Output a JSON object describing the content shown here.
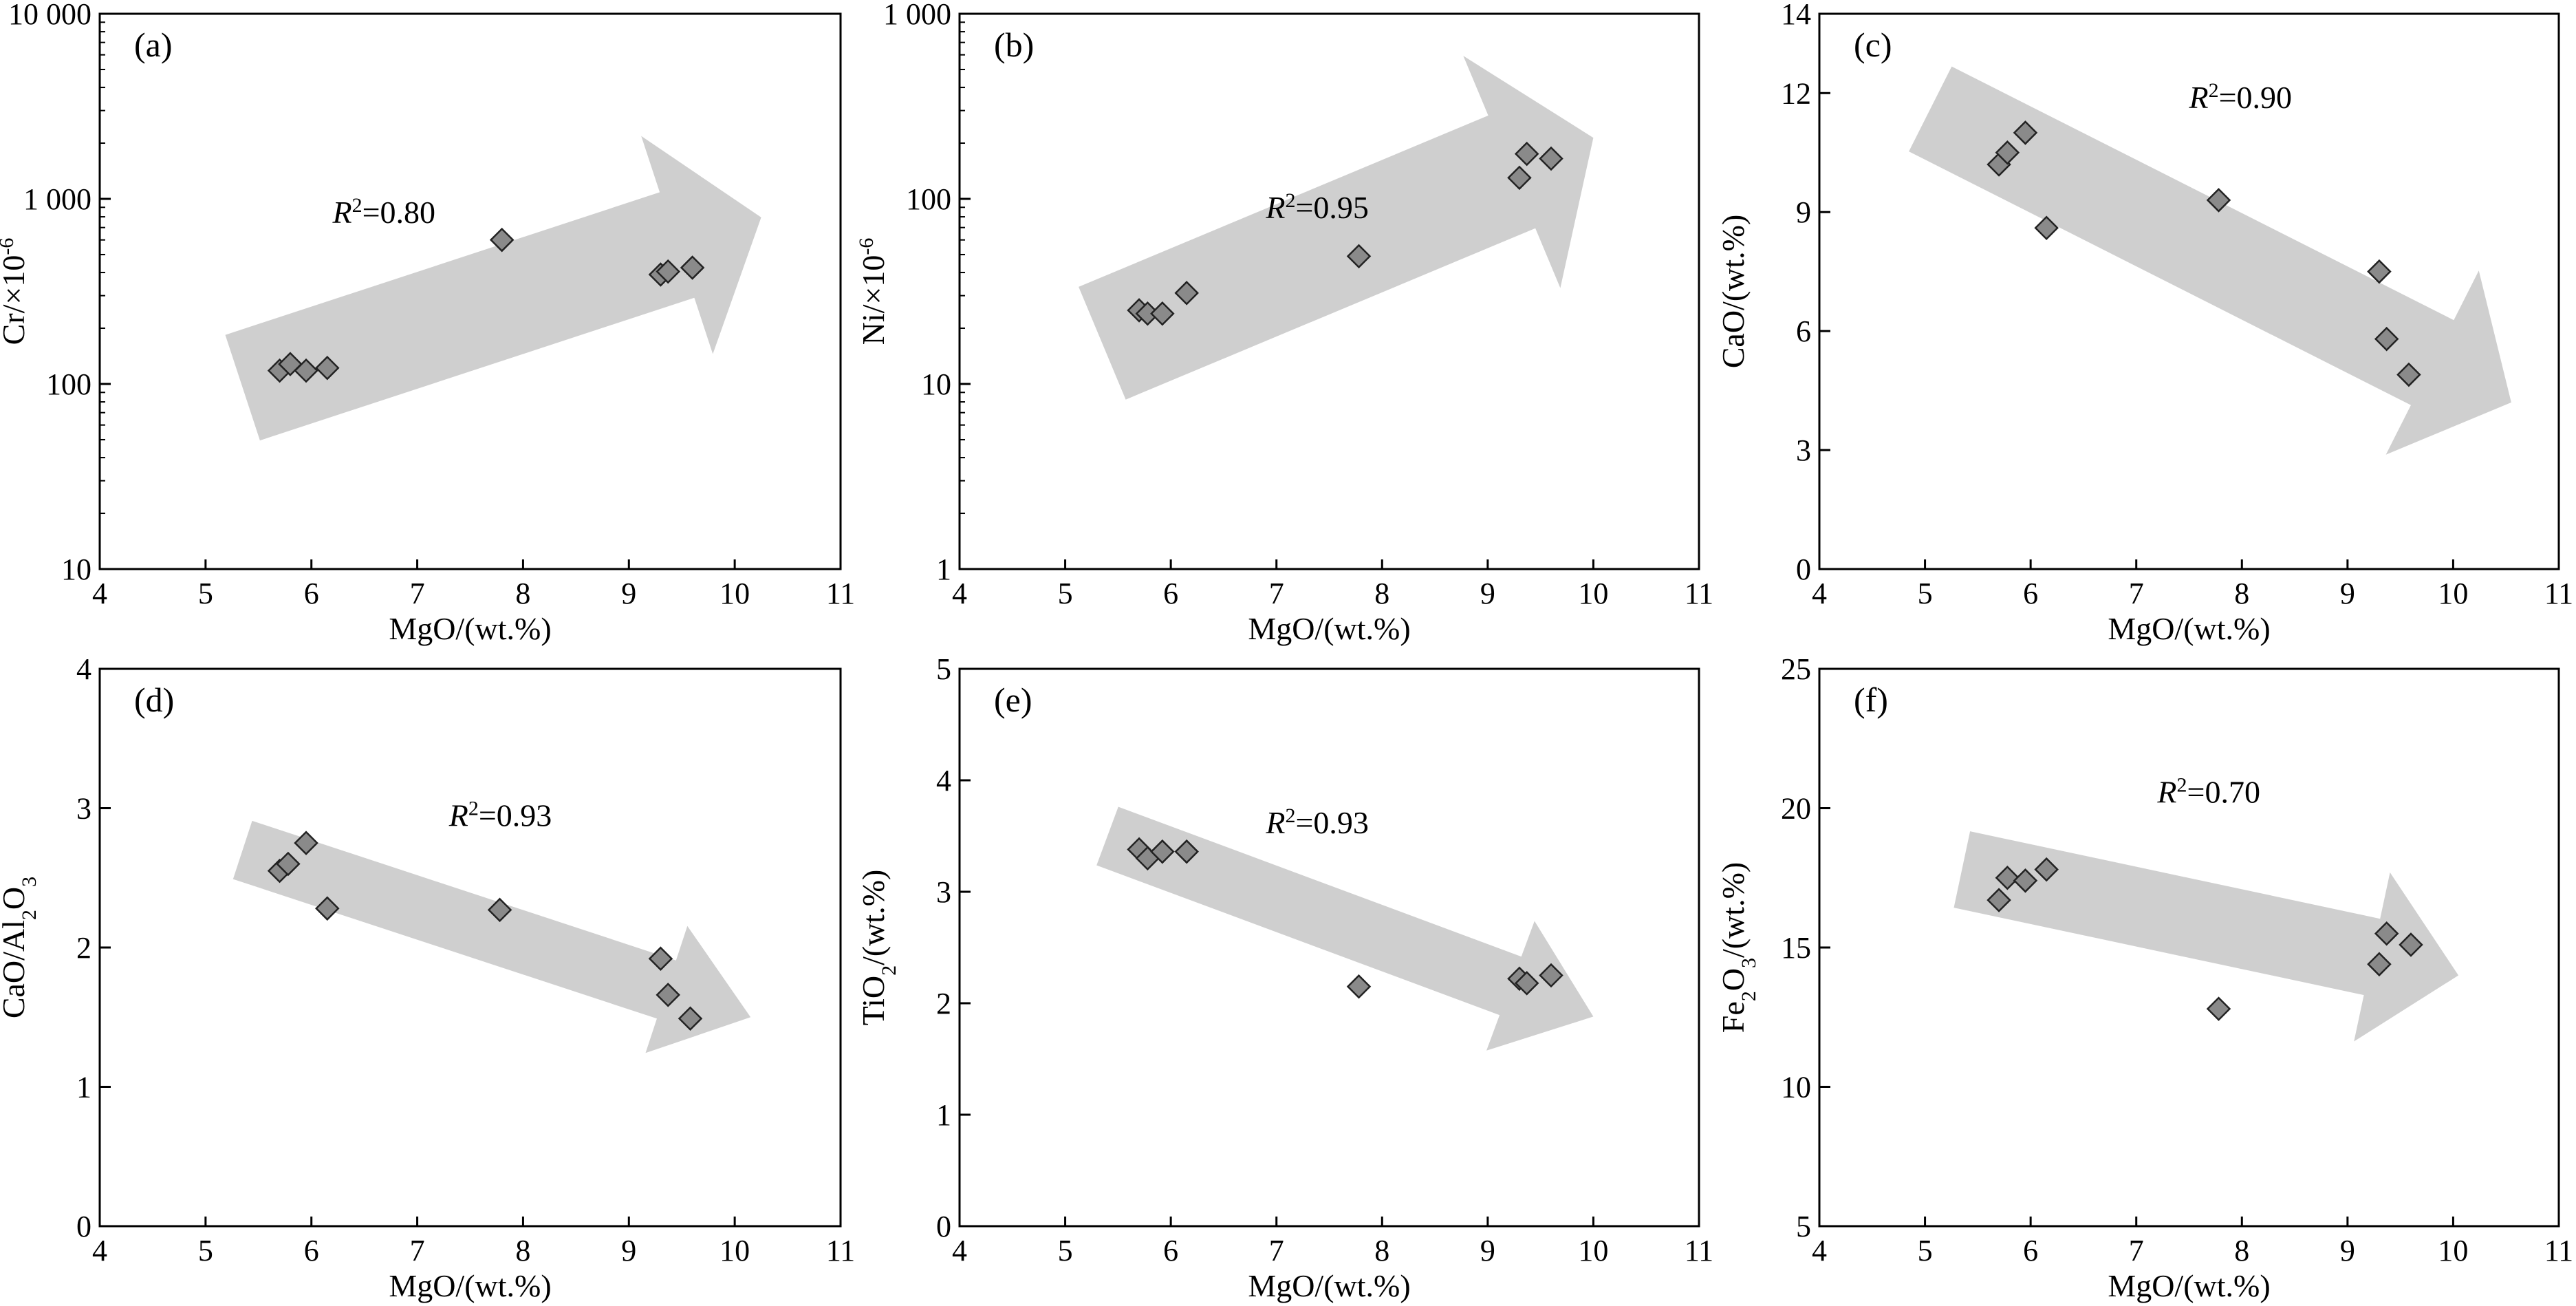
{
  "chart_data": [
    {
      "type": "scatter",
      "panel_label": "(a)",
      "scale": "log",
      "xlabel": "MgO/(wt.%)",
      "ylabel_main": "Cr/×10",
      "ylabel_sup": "-6",
      "xlim": [
        4,
        11
      ],
      "ylim": [
        10,
        10000
      ],
      "x_ticks": [
        4,
        5,
        6,
        7,
        8,
        9,
        10,
        11
      ],
      "x_tick_labels": [
        "4",
        "5",
        "6",
        "7",
        "8",
        "9",
        "10",
        "11"
      ],
      "y_ticks": [
        10,
        100,
        1000,
        10000
      ],
      "y_tick_labels": [
        "10",
        "100",
        "1 000",
        "10 000"
      ],
      "r2_prefix": "R",
      "r2_value": "=0.80",
      "trend": "increasing",
      "points": [
        [
          5.7,
          118
        ],
        [
          5.8,
          128
        ],
        [
          5.95,
          118
        ],
        [
          6.15,
          122
        ],
        [
          7.8,
          600
        ],
        [
          9.3,
          390
        ],
        [
          9.37,
          405
        ],
        [
          9.6,
          425
        ]
      ]
    },
    {
      "type": "scatter",
      "panel_label": "(b)",
      "scale": "log",
      "xlabel": "MgO/(wt.%)",
      "ylabel_main": "Ni/×10",
      "ylabel_sup": "-6",
      "xlim": [
        4,
        11
      ],
      "ylim": [
        1,
        1000
      ],
      "x_ticks": [
        4,
        5,
        6,
        7,
        8,
        9,
        10,
        11
      ],
      "x_tick_labels": [
        "4",
        "5",
        "6",
        "7",
        "8",
        "9",
        "10",
        "11"
      ],
      "y_ticks": [
        1,
        10,
        100,
        1000
      ],
      "y_tick_labels": [
        "1",
        "10",
        "100",
        "1 000"
      ],
      "r2_prefix": "R",
      "r2_value": "=0.95",
      "trend": "increasing",
      "points": [
        [
          5.7,
          25
        ],
        [
          5.78,
          24
        ],
        [
          5.92,
          24
        ],
        [
          6.15,
          31
        ],
        [
          7.78,
          49
        ],
        [
          9.3,
          130
        ],
        [
          9.37,
          175
        ],
        [
          9.6,
          165
        ]
      ]
    },
    {
      "type": "scatter",
      "panel_label": "(c)",
      "scale": "linear",
      "xlabel": "MgO/(wt.%)",
      "ylabel_main": "CaO/(wt.%)",
      "xlim": [
        4,
        11
      ],
      "ylim": [
        0,
        14
      ],
      "x_ticks": [
        4,
        5,
        6,
        7,
        8,
        9,
        10,
        11
      ],
      "x_tick_labels": [
        "4",
        "5",
        "6",
        "7",
        "8",
        "9",
        "10",
        "11"
      ],
      "y_ticks": [
        0,
        3,
        6,
        9,
        12,
        14
      ],
      "y_tick_labels": [
        "0",
        "3",
        "6",
        "9",
        "12",
        "14"
      ],
      "r2_prefix": "R",
      "r2_value": "=0.90",
      "trend": "decreasing",
      "points": [
        [
          5.7,
          10.2
        ],
        [
          5.78,
          10.5
        ],
        [
          5.95,
          11.0
        ],
        [
          6.15,
          8.6
        ],
        [
          7.78,
          9.3
        ],
        [
          9.3,
          7.5
        ],
        [
          9.37,
          5.8
        ],
        [
          9.58,
          4.9
        ]
      ]
    },
    {
      "type": "scatter",
      "panel_label": "(d)",
      "scale": "linear",
      "xlabel": "MgO/(wt.%)",
      "ylabel_main": "CaO/Al",
      "ylabel_sub": "2",
      "ylabel_tail": "O",
      "ylabel_sub2": "3",
      "xlim": [
        4,
        11
      ],
      "ylim": [
        0,
        4
      ],
      "x_ticks": [
        4,
        5,
        6,
        7,
        8,
        9,
        10,
        11
      ],
      "x_tick_labels": [
        "4",
        "5",
        "6",
        "7",
        "8",
        "9",
        "10",
        "11"
      ],
      "y_ticks": [
        0,
        1,
        2,
        3,
        4
      ],
      "y_tick_labels": [
        "0",
        "1",
        "2",
        "3",
        "4"
      ],
      "r2_prefix": "R",
      "r2_value": "=0.93",
      "trend": "decreasing",
      "points": [
        [
          5.7,
          2.55
        ],
        [
          5.78,
          2.6
        ],
        [
          5.95,
          2.75
        ],
        [
          6.15,
          2.28
        ],
        [
          7.78,
          2.27
        ],
        [
          9.3,
          1.92
        ],
        [
          9.37,
          1.66
        ],
        [
          9.58,
          1.49
        ]
      ]
    },
    {
      "type": "scatter",
      "panel_label": "(e)",
      "scale": "linear",
      "xlabel": "MgO/(wt.%)",
      "ylabel_main": "TiO",
      "ylabel_sub": "2",
      "ylabel_tail": "/(wt.%)",
      "xlim": [
        4,
        11
      ],
      "ylim": [
        0,
        5
      ],
      "x_ticks": [
        4,
        5,
        6,
        7,
        8,
        9,
        10,
        11
      ],
      "x_tick_labels": [
        "4",
        "5",
        "6",
        "7",
        "8",
        "9",
        "10",
        "11"
      ],
      "y_ticks": [
        0,
        1,
        2,
        3,
        4,
        5
      ],
      "y_tick_labels": [
        "0",
        "1",
        "2",
        "3",
        "4",
        "5"
      ],
      "r2_prefix": "R",
      "r2_value": "=0.93",
      "trend": "decreasing",
      "points": [
        [
          5.7,
          3.38
        ],
        [
          5.78,
          3.3
        ],
        [
          5.92,
          3.36
        ],
        [
          6.15,
          3.36
        ],
        [
          7.78,
          2.15
        ],
        [
          9.3,
          2.22
        ],
        [
          9.37,
          2.18
        ],
        [
          9.6,
          2.25
        ]
      ]
    },
    {
      "type": "scatter",
      "panel_label": "(f)",
      "scale": "linear",
      "xlabel": "MgO/(wt.%)",
      "ylabel_main": "Fe",
      "ylabel_sub": "2",
      "ylabel_tail": "O",
      "ylabel_sub2": "3",
      "ylabel_tail2": "/(wt.%)",
      "xlim": [
        4,
        11
      ],
      "ylim": [
        5,
        25
      ],
      "x_ticks": [
        4,
        5,
        6,
        7,
        8,
        9,
        10,
        11
      ],
      "x_tick_labels": [
        "4",
        "5",
        "6",
        "7",
        "8",
        "9",
        "10",
        "11"
      ],
      "y_ticks": [
        5,
        10,
        15,
        20,
        25
      ],
      "y_tick_labels": [
        "5",
        "10",
        "15",
        "20",
        "25"
      ],
      "r2_prefix": "R",
      "r2_value": "=0.70",
      "trend": "decreasing",
      "points": [
        [
          5.7,
          16.7
        ],
        [
          5.78,
          17.5
        ],
        [
          5.95,
          17.4
        ],
        [
          6.15,
          17.8
        ],
        [
          7.78,
          12.8
        ],
        [
          9.3,
          14.4
        ],
        [
          9.37,
          15.5
        ],
        [
          9.6,
          15.1
        ]
      ]
    }
  ],
  "colors": {
    "arrow_fill": "#cfcfcf",
    "marker_fill": "#8a8a8a",
    "marker_stroke": "#222222",
    "axis": "#000000"
  }
}
